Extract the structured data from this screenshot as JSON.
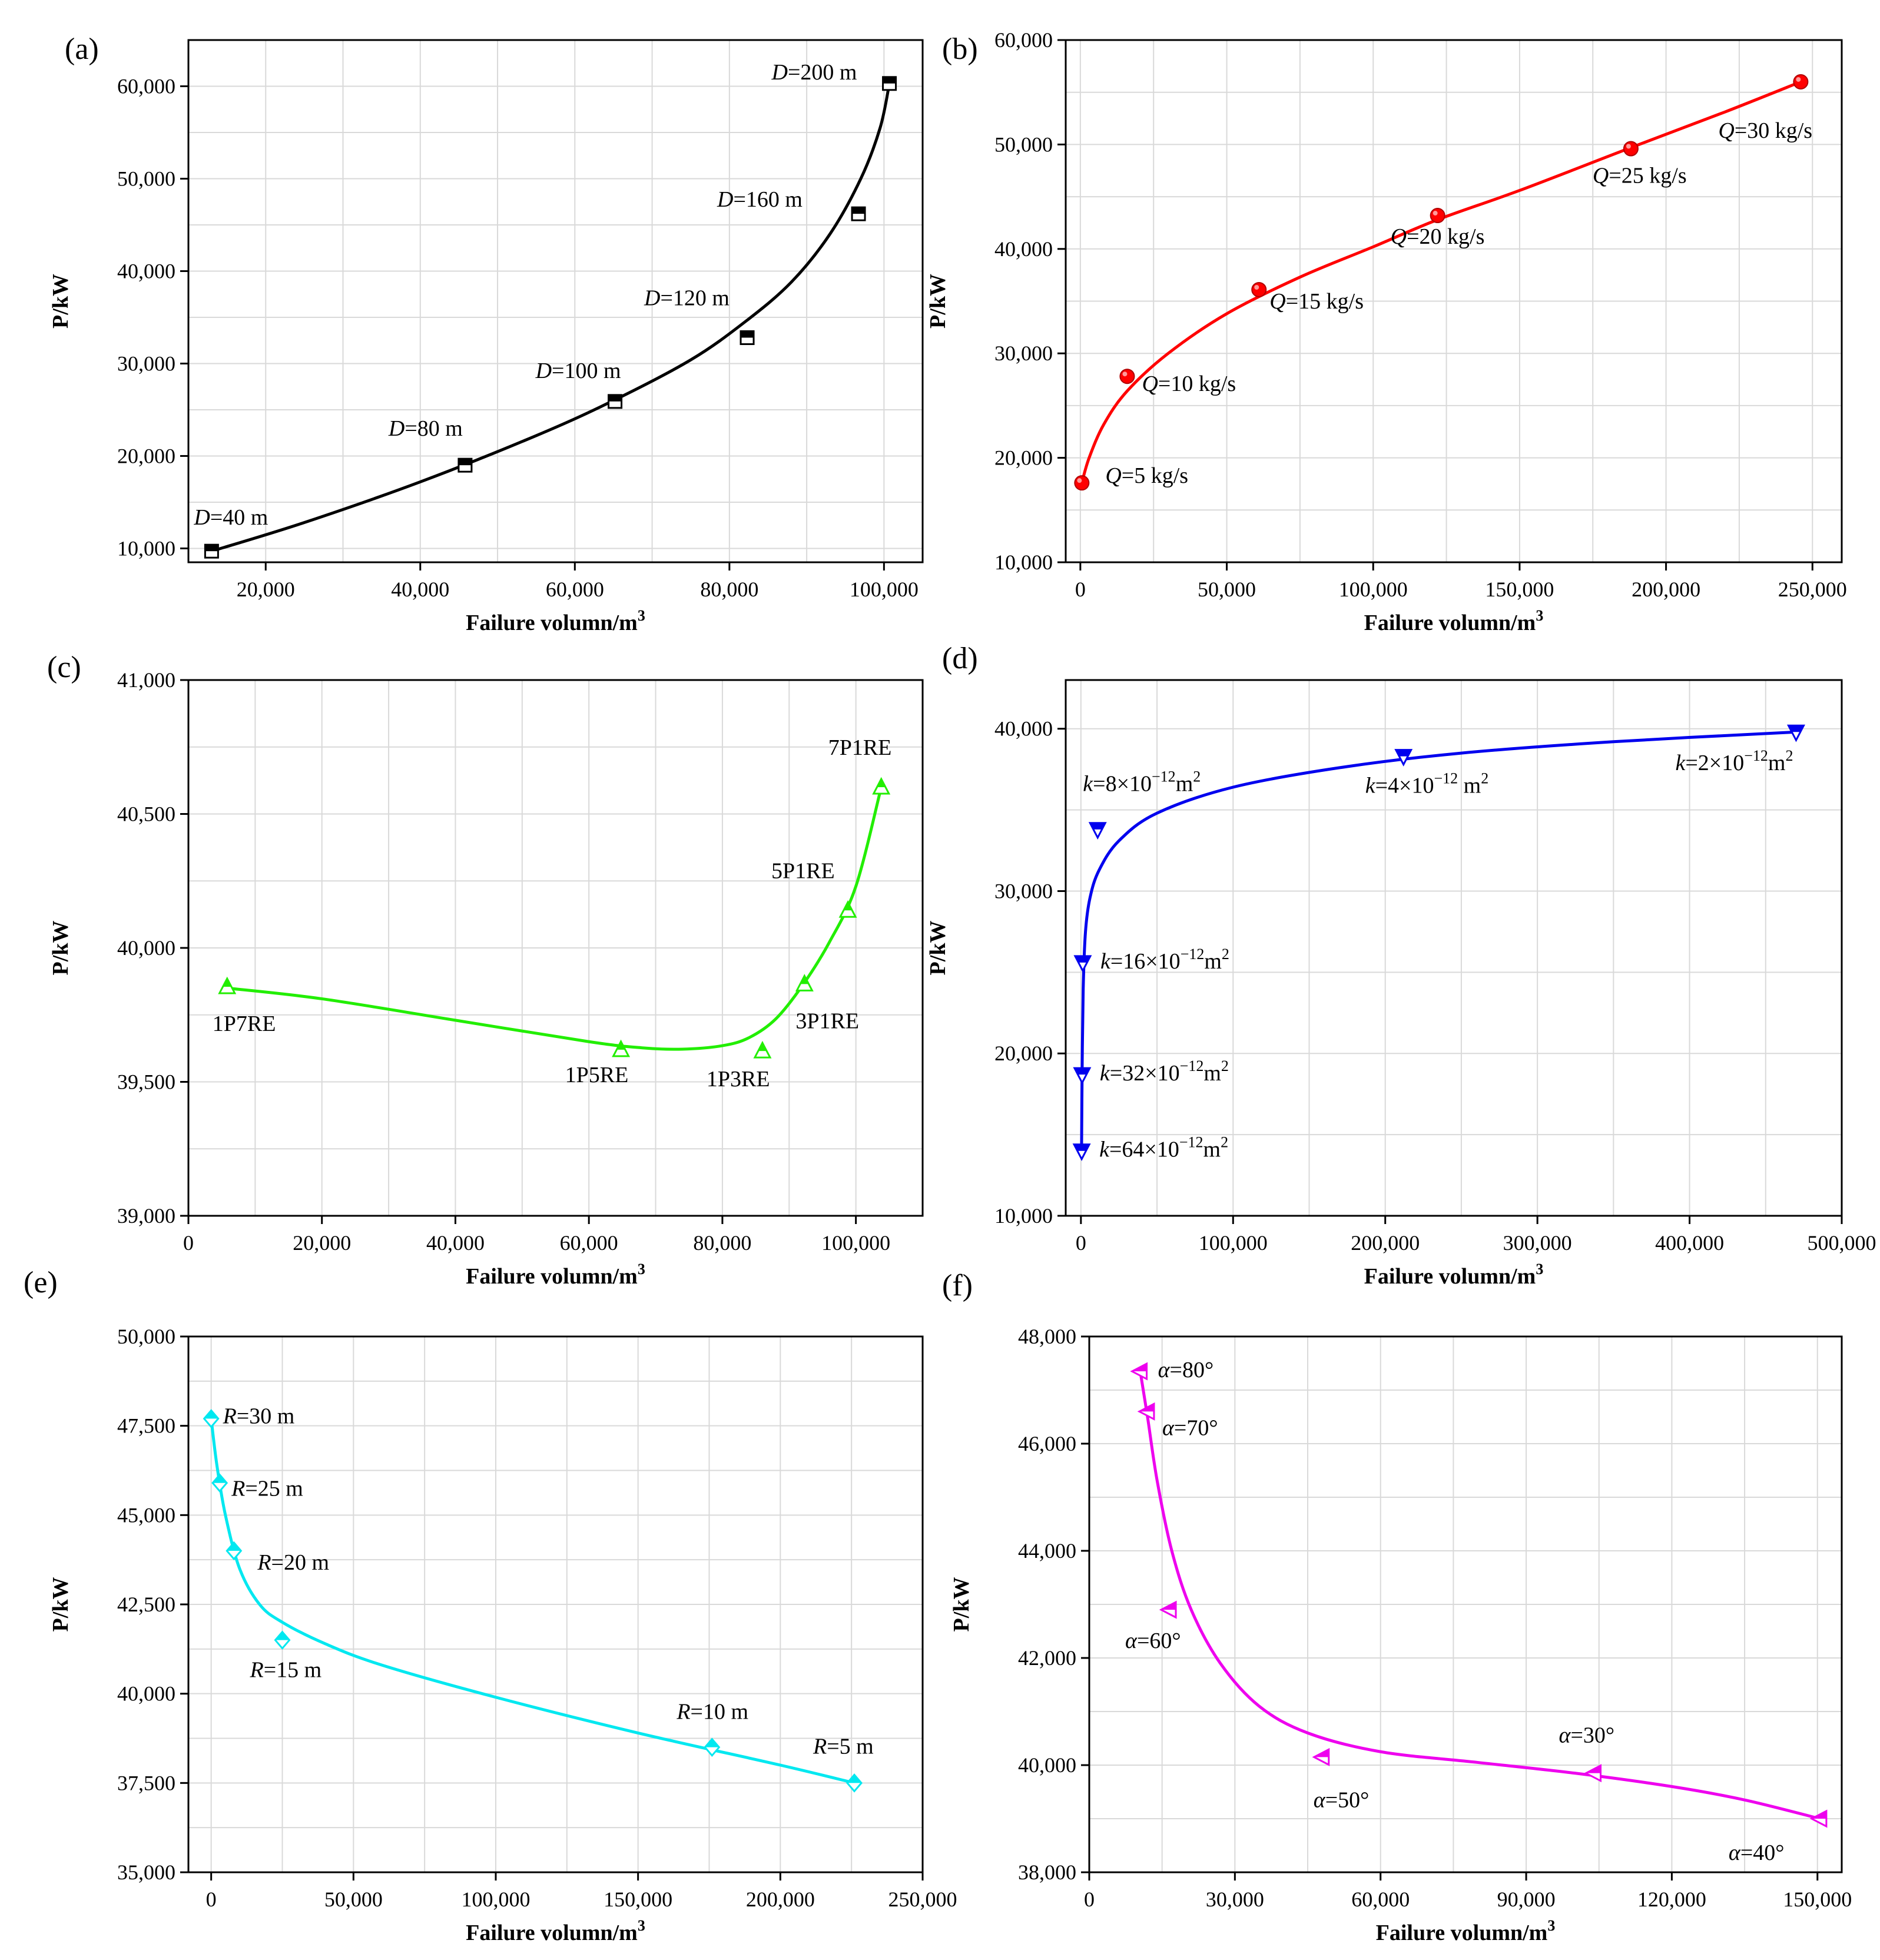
{
  "chart_data": [
    {
      "panel": "(a)",
      "type": "scatter",
      "xlabel": "Failure volumn/m",
      "xlabel_sup": "3",
      "ylabel": "P/kW",
      "xlim": [
        10000,
        105000
      ],
      "ylim": [
        8500,
        65000
      ],
      "xticks": [
        20000,
        40000,
        60000,
        80000,
        100000
      ],
      "xtick_labels": [
        "20,000",
        "40,000",
        "60,000",
        "80,000",
        "100,000"
      ],
      "yticks": [
        10000,
        20000,
        30000,
        40000,
        50000,
        60000
      ],
      "ytick_labels": [
        "10,000",
        "20,000",
        "30,000",
        "40,000",
        "50,000",
        "60,000"
      ],
      "color": "#000000",
      "marker": "square",
      "points": [
        {
          "x": 13000,
          "y": 9700,
          "var": "D",
          "value": "=40 m"
        },
        {
          "x": 45800,
          "y": 19000,
          "var": "D",
          "value": "=80 m"
        },
        {
          "x": 65200,
          "y": 25900,
          "var": "D",
          "value": "=100 m"
        },
        {
          "x": 82300,
          "y": 32800,
          "var": "D",
          "value": "=120 m"
        },
        {
          "x": 96700,
          "y": 46200,
          "var": "D",
          "value": "=160 m"
        },
        {
          "x": 100700,
          "y": 60300,
          "var": "D",
          "value": "=200 m"
        }
      ],
      "curve": [
        [
          13000,
          9700
        ],
        [
          25000,
          12800
        ],
        [
          40000,
          17200
        ],
        [
          55000,
          22200
        ],
        [
          65000,
          26000
        ],
        [
          75000,
          30400
        ],
        [
          82000,
          34500
        ],
        [
          88000,
          38800
        ],
        [
          93000,
          44000
        ],
        [
          97000,
          50000
        ],
        [
          99500,
          55500
        ],
        [
          100700,
          60300
        ]
      ]
    },
    {
      "panel": "(b)",
      "type": "scatter",
      "xlabel": "Failure volumn/m",
      "xlabel_sup": "3",
      "ylabel": "P/kW",
      "xlim": [
        -5000,
        260000
      ],
      "ylim": [
        10000,
        60000
      ],
      "xticks": [
        0,
        50000,
        100000,
        150000,
        200000,
        250000
      ],
      "xtick_labels": [
        "0",
        "50,000",
        "100,000",
        "150,000",
        "200,000",
        "250,000"
      ],
      "yticks": [
        10000,
        20000,
        30000,
        40000,
        50000,
        60000
      ],
      "ytick_labels": [
        "10,000",
        "20,000",
        "30,000",
        "40,000",
        "50,000",
        "60,000"
      ],
      "color": "#ff0000",
      "marker": "circle",
      "points": [
        {
          "x": 500,
          "y": 17600,
          "var": "Q",
          "value": "=5 kg/s"
        },
        {
          "x": 16000,
          "y": 27800,
          "var": "Q",
          "value": "=10 kg/s"
        },
        {
          "x": 61000,
          "y": 36100,
          "var": "Q",
          "value": "=15 kg/s"
        },
        {
          "x": 122000,
          "y": 43200,
          "var": "Q",
          "value": "=20 kg/s"
        },
        {
          "x": 188000,
          "y": 49600,
          "var": "Q",
          "value": "=25 kg/s"
        },
        {
          "x": 246000,
          "y": 56000,
          "var": "Q",
          "value": "=30 kg/s"
        }
      ],
      "curve": [
        [
          500,
          17600
        ],
        [
          3000,
          20000
        ],
        [
          8000,
          23200
        ],
        [
          16000,
          26400
        ],
        [
          30000,
          30000
        ],
        [
          50000,
          33800
        ],
        [
          75000,
          37300
        ],
        [
          100000,
          40200
        ],
        [
          122000,
          42800
        ],
        [
          150000,
          45600
        ],
        [
          188000,
          49700
        ],
        [
          220000,
          53100
        ],
        [
          246000,
          56000
        ]
      ]
    },
    {
      "panel": "(c)",
      "type": "scatter",
      "xlabel": "Failure volumn/m",
      "xlabel_sup": "3",
      "ylabel": "P/kW",
      "xlim": [
        0,
        110000
      ],
      "ylim": [
        39000,
        41000
      ],
      "xticks": [
        0,
        20000,
        40000,
        60000,
        80000,
        100000
      ],
      "xtick_labels": [
        "0",
        "20,000",
        "40,000",
        "60,000",
        "80,000",
        "100,000"
      ],
      "yticks": [
        39000,
        39500,
        40000,
        40500,
        41000
      ],
      "ytick_labels": [
        "39,000",
        "39,500",
        "40,000",
        "40,500",
        "41,000"
      ],
      "color": "#22ee00",
      "marker": "triangle-up",
      "points": [
        {
          "x": 5800,
          "y": 39855,
          "label": "1P7RE"
        },
        {
          "x": 64800,
          "y": 39620,
          "label": "1P5RE"
        },
        {
          "x": 86000,
          "y": 39615,
          "label": "1P3RE"
        },
        {
          "x": 92300,
          "y": 39865,
          "label": "3P1RE"
        },
        {
          "x": 98800,
          "y": 40140,
          "label": "5P1RE"
        },
        {
          "x": 103800,
          "y": 40600,
          "label": "7P1RE"
        }
      ],
      "curve": [
        [
          5800,
          39850
        ],
        [
          20000,
          39810
        ],
        [
          40000,
          39730
        ],
        [
          60000,
          39650
        ],
        [
          68000,
          39627
        ],
        [
          74000,
          39622
        ],
        [
          80000,
          39635
        ],
        [
          84000,
          39665
        ],
        [
          88000,
          39735
        ],
        [
          92000,
          39860
        ],
        [
          96000,
          40020
        ],
        [
          100000,
          40230
        ],
        [
          103800,
          40600
        ]
      ]
    },
    {
      "panel": "(d)",
      "type": "scatter",
      "xlabel": "Failure volumn/m",
      "xlabel_sup": "3",
      "ylabel": "P/kW",
      "xlim": [
        -10000,
        500000
      ],
      "ylim": [
        10000,
        43000
      ],
      "xticks": [
        0,
        100000,
        200000,
        300000,
        400000,
        500000
      ],
      "xtick_labels": [
        "0",
        "100,000",
        "200,000",
        "300,000",
        "400,000",
        "500,000"
      ],
      "yticks": [
        10000,
        20000,
        30000,
        40000
      ],
      "ytick_labels": [
        "10,000",
        "20,000",
        "30,000",
        "40,000"
      ],
      "color": "#0000ee",
      "marker": "triangle-down",
      "points": [
        {
          "x": 500,
          "y": 14000,
          "var": "k",
          "value": "=64×10",
          "exp": "−12",
          "unit": "m",
          "unit_sup": "2"
        },
        {
          "x": 800,
          "y": 18700,
          "var": "k",
          "value": "=32×10",
          "exp": "−12",
          "unit": "m",
          "unit_sup": "2"
        },
        {
          "x": 1200,
          "y": 25600,
          "var": "k",
          "value": "=16×10",
          "exp": "−12",
          "unit": "m",
          "unit_sup": "2"
        },
        {
          "x": 11000,
          "y": 33800,
          "var": "k",
          "value": "=8×10",
          "exp": "−12",
          "unit": "m",
          "unit_sup": "2"
        },
        {
          "x": 212000,
          "y": 38300,
          "var": "k",
          "value": "=4×10",
          "exp": "−12",
          "unit": " m",
          "unit_sup": "2"
        },
        {
          "x": 470000,
          "y": 39800,
          "var": "k",
          "value": "=2×10",
          "exp": "−12",
          "unit": "m",
          "unit_sup": "2"
        }
      ],
      "curve": [
        [
          400,
          13800
        ],
        [
          800,
          19000
        ],
        [
          1500,
          24000
        ],
        [
          3000,
          27500
        ],
        [
          6000,
          29600
        ],
        [
          12000,
          31300
        ],
        [
          25000,
          33100
        ],
        [
          50000,
          34800
        ],
        [
          100000,
          36400
        ],
        [
          170000,
          37600
        ],
        [
          250000,
          38500
        ],
        [
          350000,
          39200
        ],
        [
          470000,
          39800
        ]
      ]
    },
    {
      "panel": "(e)",
      "type": "scatter",
      "xlabel": "Failure volumn/m",
      "xlabel_sup": "3",
      "ylabel": "P/kW",
      "xlim": [
        -8000,
        250000
      ],
      "ylim": [
        35000,
        50000
      ],
      "xticks": [
        0,
        50000,
        100000,
        150000,
        200000,
        250000
      ],
      "xtick_labels": [
        "0",
        "50,000",
        "100,000",
        "150,000",
        "200,000",
        "250,000"
      ],
      "yticks": [
        35000,
        37500,
        40000,
        42500,
        45000,
        47500,
        50000
      ],
      "ytick_labels": [
        "35,000",
        "37,500",
        "40,000",
        "42,500",
        "45,000",
        "47,500",
        "50,000"
      ],
      "color": "#00e8f0",
      "marker": "diamond",
      "points": [
        {
          "x": 0,
          "y": 47700,
          "var": "R",
          "value": "=30 m"
        },
        {
          "x": 3000,
          "y": 45900,
          "var": "R",
          "value": "=25 m"
        },
        {
          "x": 8000,
          "y": 44000,
          "var": "R",
          "value": "=20 m"
        },
        {
          "x": 25000,
          "y": 41500,
          "var": "R",
          "value": "=15 m"
        },
        {
          "x": 176000,
          "y": 38500,
          "var": "R",
          "value": "=10 m"
        },
        {
          "x": 226000,
          "y": 37500,
          "var": "R",
          "value": "=5 m"
        }
      ],
      "curve": [
        [
          0,
          47700
        ],
        [
          2000,
          46400
        ],
        [
          5000,
          45000
        ],
        [
          10000,
          43500
        ],
        [
          17000,
          42500
        ],
        [
          25000,
          42000
        ],
        [
          40000,
          41400
        ],
        [
          60000,
          40800
        ],
        [
          100000,
          39900
        ],
        [
          150000,
          38900
        ],
        [
          200000,
          38000
        ],
        [
          226000,
          37500
        ]
      ]
    },
    {
      "panel": "(f)",
      "type": "scatter",
      "xlabel": "Failure volumn/m",
      "xlabel_sup": "3",
      "ylabel": "P/kW",
      "xlim": [
        0,
        155000
      ],
      "ylim": [
        38000,
        48000
      ],
      "xticks": [
        0,
        30000,
        60000,
        90000,
        120000,
        150000
      ],
      "xtick_labels": [
        "0",
        "30,000",
        "60,000",
        "90,000",
        "120,000",
        "150,000"
      ],
      "yticks": [
        38000,
        40000,
        42000,
        44000,
        46000,
        48000
      ],
      "ytick_labels": [
        "38,000",
        "40,000",
        "42,000",
        "44,000",
        "46,000",
        "48,000"
      ],
      "color": "#ee00ee",
      "marker": "triangle-left",
      "points": [
        {
          "x": 10500,
          "y": 47350,
          "var": "α",
          "value": "=80°"
        },
        {
          "x": 12000,
          "y": 46600,
          "var": "α",
          "value": "=70°"
        },
        {
          "x": 16500,
          "y": 42900,
          "var": "α",
          "value": "=60°"
        },
        {
          "x": 48000,
          "y": 40150,
          "var": "α",
          "value": "=50°"
        },
        {
          "x": 104000,
          "y": 39850,
          "var": "α",
          "value": "=30°"
        },
        {
          "x": 150500,
          "y": 39000,
          "var": "α",
          "value": "=40°"
        }
      ],
      "curve": [
        [
          10500,
          47350
        ],
        [
          12000,
          46500
        ],
        [
          14000,
          45300
        ],
        [
          17000,
          44000
        ],
        [
          21000,
          42900
        ],
        [
          27000,
          41900
        ],
        [
          35000,
          41100
        ],
        [
          45000,
          40600
        ],
        [
          60000,
          40250
        ],
        [
          80000,
          40050
        ],
        [
          100000,
          39850
        ],
        [
          120000,
          39600
        ],
        [
          135000,
          39350
        ],
        [
          150500,
          39000
        ]
      ]
    }
  ]
}
